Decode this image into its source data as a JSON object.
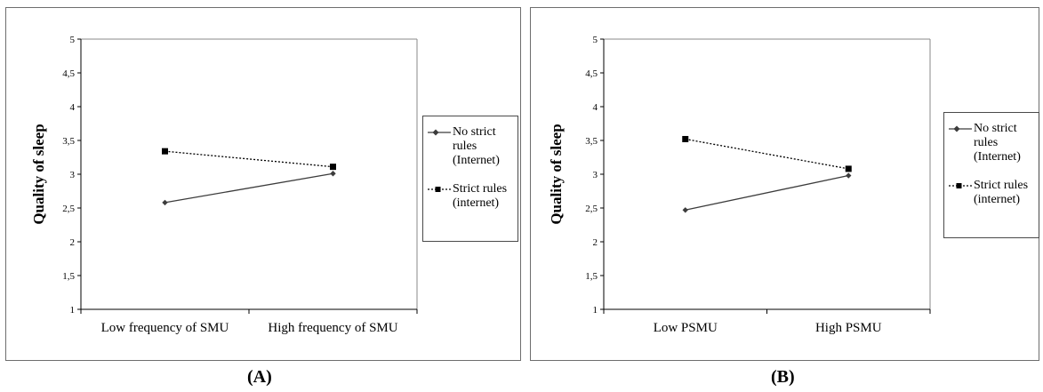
{
  "chart_data": [
    {
      "type": "line",
      "panel_label": "(A)",
      "ylabel": "Quality of sleep",
      "xlabel": "",
      "ylim": [
        1,
        5
      ],
      "yticks": [
        "1",
        "1,5",
        "2",
        "2,5",
        "3",
        "3,5",
        "4",
        "4,5",
        "5"
      ],
      "categories": [
        "Low frequency of SMU",
        "High frequency of SMU"
      ],
      "legend_position": "right",
      "series": [
        {
          "name": "No strict rules (Internet)",
          "legend_lines": [
            "No strict",
            "rules",
            "(Internet)"
          ],
          "values": [
            2.58,
            3.01
          ],
          "marker": "diamond",
          "line": "solid",
          "color": "#3c3c3c"
        },
        {
          "name": "Strict rules (internet)",
          "legend_lines": [
            "Strict rules",
            "(internet)"
          ],
          "values": [
            3.34,
            3.11
          ],
          "marker": "square",
          "line": "dotted",
          "color": "#000000"
        }
      ]
    },
    {
      "type": "line",
      "panel_label": "(B)",
      "ylabel": "Quality of sleep",
      "xlabel": "",
      "ylim": [
        1,
        5
      ],
      "yticks": [
        "1",
        "1,5",
        "2",
        "2,5",
        "3",
        "3,5",
        "4",
        "4,5",
        "5"
      ],
      "categories": [
        "Low PSMU",
        "High PSMU"
      ],
      "legend_position": "right",
      "series": [
        {
          "name": "No strict rules (Internet)",
          "legend_lines": [
            "No strict",
            "rules",
            "(Internet)"
          ],
          "values": [
            2.47,
            2.98
          ],
          "marker": "diamond",
          "line": "solid",
          "color": "#3c3c3c"
        },
        {
          "name": "Strict rules (internet)",
          "legend_lines": [
            "Strict rules",
            "(internet)"
          ],
          "values": [
            3.52,
            3.08
          ],
          "marker": "square",
          "line": "dotted",
          "color": "#000000"
        }
      ]
    }
  ]
}
